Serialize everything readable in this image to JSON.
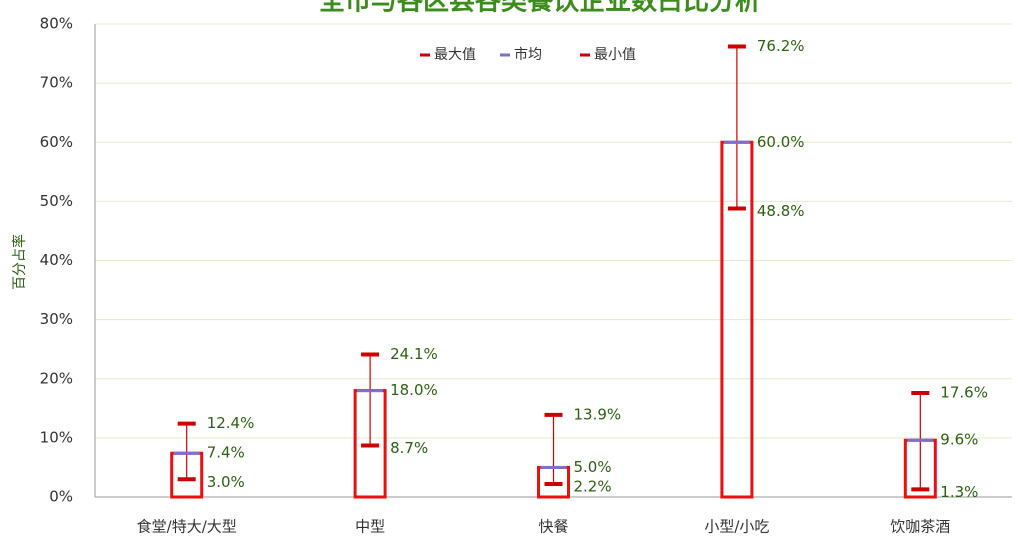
{
  "chart_data": {
    "type": "hilo",
    "title": "全市与各区县各类餐饮企业数占比分析",
    "y_label": "百分占率",
    "categories": [
      "食堂/特大/大型",
      "中型",
      "快餐",
      "小型/小吃",
      "饮咖茶酒"
    ],
    "series": [
      {
        "name": "最大值",
        "color": "#cc0000",
        "values": [
          12.4,
          24.1,
          13.9,
          76.2,
          17.6
        ],
        "value_labels": [
          "12.4%",
          "24.1%",
          "13.9%",
          "76.2%",
          "17.6%"
        ]
      },
      {
        "name": "市均",
        "color": "#7b6fd0",
        "values": [
          7.4,
          18.0,
          5.0,
          60.0,
          9.6
        ],
        "value_labels": [
          "7.4%",
          "18.0%",
          "5.0%",
          "60.0%",
          "9.6%"
        ]
      },
      {
        "name": "最小值",
        "color": "#cc0000",
        "values": [
          3.0,
          8.7,
          2.2,
          48.8,
          1.3
        ],
        "value_labels": [
          "3.0%",
          "8.7%",
          "2.2%",
          "48.8%",
          "1.3%"
        ]
      }
    ],
    "ylim": [
      0,
      80
    ],
    "yticks": [
      {
        "value": 0,
        "label": "0%"
      },
      {
        "value": 10,
        "label": "10%"
      },
      {
        "value": 20,
        "label": "20%"
      },
      {
        "value": 30,
        "label": "30%"
      },
      {
        "value": 40,
        "label": "40%"
      },
      {
        "value": 50,
        "label": "50%"
      },
      {
        "value": 60,
        "label": "60%"
      },
      {
        "value": 70,
        "label": "70%"
      },
      {
        "value": 80,
        "label": "80%"
      }
    ],
    "grid": true
  }
}
